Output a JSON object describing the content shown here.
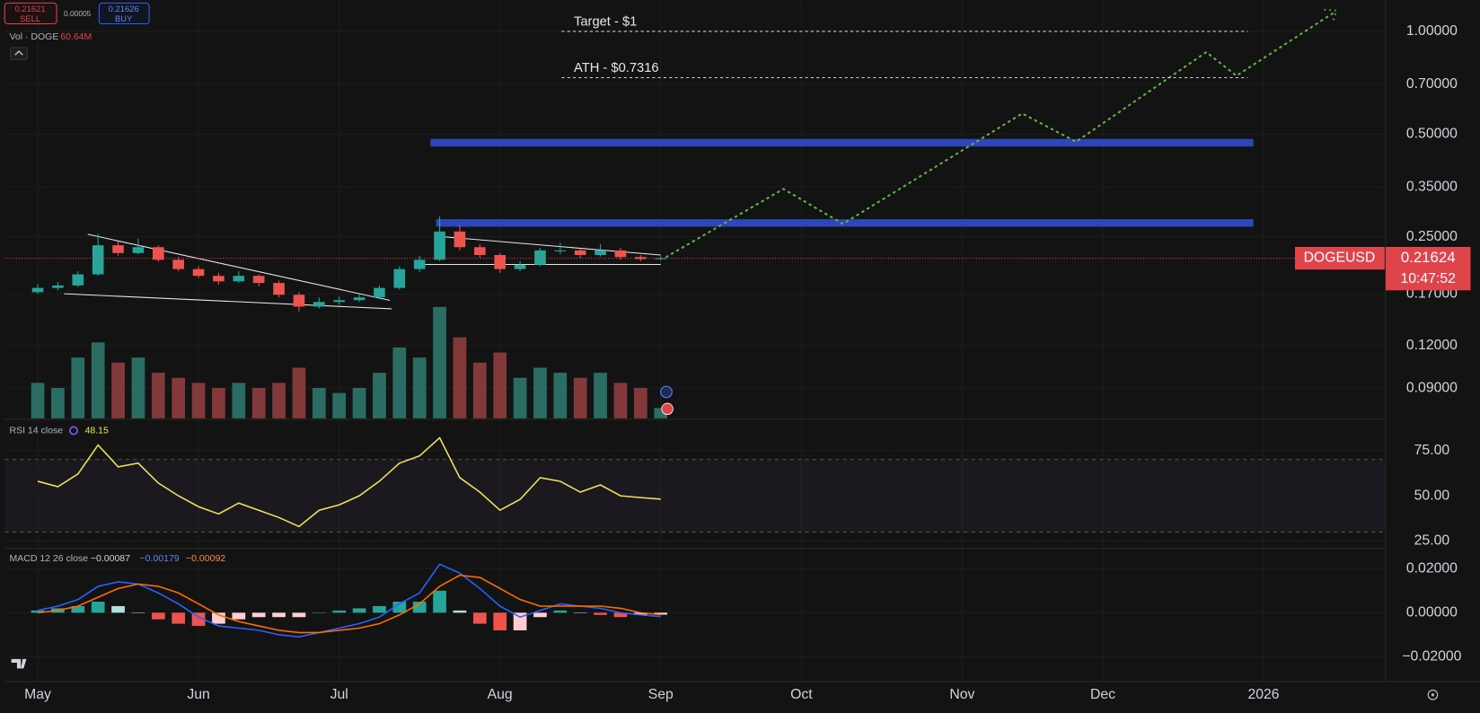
{
  "toolbar": {
    "sell_price": "0.21621",
    "sell_label": "SELL",
    "spread": "0.00005",
    "buy_price": "0.21626",
    "buy_label": "BUY",
    "volume_legend": "Vol · DOGE",
    "volume_value": "60.64M"
  },
  "price_tag": {
    "symbol": "DOGEUSD",
    "countdown": "10:47:52"
  },
  "chart_data": [
    {
      "type": "candlestick",
      "log_scale": true,
      "up_color": "#26a69a",
      "down_color": "#ef5350",
      "volume_up_color": "#2b6d63",
      "volume_down_color": "#83393a",
      "grid": true,
      "categories": [
        "May",
        null,
        null,
        null,
        null,
        null,
        null,
        null,
        "Jun",
        null,
        null,
        null,
        null,
        null,
        null,
        "Jul",
        null,
        null,
        null,
        null,
        null,
        null,
        null,
        "Aug",
        null,
        null,
        null,
        null,
        null,
        null,
        null,
        "Sep",
        null,
        null,
        null,
        null,
        null,
        null,
        "Oct",
        null,
        null,
        null,
        null,
        null,
        null,
        null,
        "Nov",
        null,
        null,
        null,
        null,
        null,
        null,
        "Dec",
        null,
        null,
        null,
        null,
        null,
        null,
        null,
        "2026",
        null,
        null,
        null,
        null,
        null,
        null
      ],
      "open": [
        0.172,
        0.177,
        0.18,
        0.194,
        0.236,
        0.224,
        0.233,
        0.214,
        0.201,
        0.192,
        0.185,
        0.192,
        0.183,
        0.169,
        0.156,
        0.161,
        0.163,
        0.166,
        0.177,
        0.201,
        0.214,
        0.259,
        0.233,
        0.221,
        0.201,
        0.207,
        0.228,
        0.228,
        0.221,
        0.228,
        0.218,
        0.215,
        null,
        null,
        null,
        null,
        null,
        null,
        null,
        null,
        null,
        null,
        null,
        null,
        null,
        null,
        null,
        null,
        null,
        null,
        null,
        null,
        null,
        null,
        null,
        null,
        null,
        null,
        null,
        null,
        null,
        null,
        null,
        null,
        null,
        null,
        null,
        null
      ],
      "high": [
        0.182,
        0.184,
        0.198,
        0.255,
        0.242,
        0.247,
        0.236,
        0.218,
        0.205,
        0.196,
        0.198,
        0.194,
        0.186,
        0.172,
        0.166,
        0.167,
        0.17,
        0.18,
        0.205,
        0.22,
        0.287,
        0.27,
        0.238,
        0.224,
        0.212,
        0.232,
        0.24,
        0.231,
        0.238,
        0.232,
        0.221,
        0.219,
        null,
        null,
        null,
        null,
        null,
        null,
        null,
        null,
        null,
        null,
        null,
        null,
        null,
        null,
        null,
        null,
        null,
        null,
        null,
        null,
        null,
        null,
        null,
        null,
        null,
        null,
        null,
        null,
        null,
        null,
        null,
        null,
        null,
        null,
        null,
        null
      ],
      "low": [
        0.17,
        0.174,
        0.178,
        0.192,
        0.22,
        0.222,
        0.211,
        0.198,
        0.189,
        0.181,
        0.183,
        0.179,
        0.166,
        0.151,
        0.154,
        0.158,
        0.161,
        0.164,
        0.175,
        0.197,
        0.212,
        0.228,
        0.217,
        0.196,
        0.198,
        0.205,
        0.222,
        0.216,
        0.219,
        0.214,
        0.212,
        0.213,
        null,
        null,
        null,
        null,
        null,
        null,
        null,
        null,
        null,
        null,
        null,
        null,
        null,
        null,
        null,
        null,
        null,
        null,
        null,
        null,
        null,
        null,
        null,
        null,
        null,
        null,
        null,
        null,
        null,
        null,
        null,
        null,
        null,
        null,
        null,
        null
      ],
      "close": [
        0.177,
        0.18,
        0.194,
        0.236,
        0.224,
        0.233,
        0.214,
        0.201,
        0.192,
        0.185,
        0.192,
        0.183,
        0.169,
        0.156,
        0.161,
        0.163,
        0.166,
        0.177,
        0.201,
        0.214,
        0.259,
        0.233,
        0.221,
        0.201,
        0.207,
        0.228,
        0.228,
        0.221,
        0.228,
        0.218,
        0.215,
        0.21624,
        null,
        null,
        null,
        null,
        null,
        null,
        null,
        null,
        null,
        null,
        null,
        null,
        null,
        null,
        null,
        null,
        null,
        null,
        null,
        null,
        null,
        null,
        null,
        null,
        null,
        null,
        null,
        null,
        null,
        null,
        null,
        null,
        null,
        null,
        null,
        null
      ],
      "volume": [
        210000000,
        180000000,
        360000000,
        450000000,
        330000000,
        360000000,
        270000000,
        240000000,
        210000000,
        180000000,
        210000000,
        180000000,
        210000000,
        300000000,
        180000000,
        150000000,
        180000000,
        270000000,
        420000000,
        360000000,
        660000000,
        480000000,
        330000000,
        390000000,
        240000000,
        300000000,
        270000000,
        240000000,
        270000000,
        210000000,
        180000000,
        60640000,
        null,
        null,
        null,
        null,
        null,
        null,
        null,
        null,
        null,
        null,
        null,
        null,
        null,
        null,
        null,
        null,
        null,
        null,
        null,
        null,
        null,
        null,
        null,
        null,
        null,
        null,
        null,
        null,
        null,
        null,
        null,
        null,
        null,
        null,
        null,
        null
      ],
      "ylim": [
        0.0734,
        1.234
      ],
      "yticks": [
        {
          "value": 1,
          "label": "1.00000"
        },
        {
          "value": 0.7,
          "label": "0.70000"
        },
        {
          "value": 0.5,
          "label": "0.50000"
        },
        {
          "value": 0.35,
          "label": "0.35000"
        },
        {
          "value": 0.25,
          "label": "0.25000"
        },
        {
          "value": 0.17,
          "label": "0.17000"
        },
        {
          "value": 0.12,
          "label": "0.12000"
        },
        {
          "value": 0.09,
          "label": "0.09000"
        }
      ],
      "annotations": [
        {
          "value": 1,
          "label": "Target - $1"
        },
        {
          "value": 0.7316,
          "label": "ATH - $0.7316"
        }
      ]
    },
    {
      "type": "line",
      "grid": true,
      "band": [
        30,
        70
      ],
      "series": [
        {
          "name": "RSI 14 close",
          "color": "#f0e05a",
          "values": [
            58,
            55,
            62,
            78,
            66,
            68,
            57,
            50,
            44,
            40,
            46,
            42,
            38,
            33,
            42,
            45,
            50,
            58,
            68,
            72,
            82,
            60,
            52,
            42,
            48,
            60,
            58,
            52,
            56,
            50,
            49,
            48.15,
            null,
            null,
            null,
            null,
            null,
            null,
            null,
            null,
            null,
            null,
            null,
            null,
            null,
            null,
            null,
            null,
            null,
            null,
            null,
            null,
            null,
            null,
            null,
            null,
            null,
            null,
            null,
            null,
            null,
            null,
            null,
            null,
            null,
            null,
            null,
            null
          ]
        }
      ],
      "ylim": [
        21.4,
        91.7
      ],
      "yticks": [
        {
          "value": 75,
          "label": "75.00"
        },
        {
          "value": 50,
          "label": "50.00"
        },
        {
          "value": 25,
          "label": "25.00"
        }
      ]
    },
    {
      "type": "macd",
      "grid": true,
      "title": "MACD 12 26 close",
      "legend_values": [
        "−0.00087",
        "−0.00179",
        "−0.00092"
      ],
      "series": [
        {
          "color": "#26a69a",
          "values": [
            0.001,
            0.002,
            0.003,
            0.005,
            0.003,
            0,
            -0.003,
            -0.005,
            -0.006,
            -0.005,
            -0.003,
            -0.002,
            -0.002,
            -0.002,
            0,
            0.001,
            0.002,
            0.003,
            0.005,
            0.005,
            0.01,
            0.001,
            -0.005,
            -0.008,
            -0.008,
            -0.002,
            0.001,
            0,
            -0.001,
            -0.002,
            -0.001,
            -0.00087,
            null,
            null,
            null,
            null,
            null,
            null,
            null,
            null,
            null,
            null,
            null,
            null,
            null,
            null,
            null,
            null,
            null,
            null,
            null,
            null,
            null,
            null,
            null,
            null,
            null,
            null,
            null,
            null,
            null,
            null,
            null,
            null,
            null,
            null,
            null,
            null
          ]
        },
        {
          "color": "#2962ff",
          "values": [
            0.001,
            0.003,
            0.006,
            0.012,
            0.014,
            0.013,
            0.009,
            0.004,
            -0.002,
            -0.006,
            -0.007,
            -0.008,
            -0.01,
            -0.011,
            -0.009,
            -0.007,
            -0.005,
            -0.002,
            0.004,
            0.009,
            0.022,
            0.018,
            0.011,
            0.003,
            -0.002,
            0.001,
            0.004,
            0.003,
            0.002,
            0,
            -0.001,
            -0.00179,
            null,
            null,
            null,
            null,
            null,
            null,
            null,
            null,
            null,
            null,
            null,
            null,
            null,
            null,
            null,
            null,
            null,
            null,
            null,
            null,
            null,
            null,
            null,
            null,
            null,
            null,
            null,
            null,
            null,
            null,
            null,
            null,
            null,
            null,
            null,
            null
          ]
        },
        {
          "color": "#ff6d00",
          "values": [
            0,
            0.001,
            0.003,
            0.007,
            0.011,
            0.013,
            0.012,
            0.009,
            0.004,
            -0.001,
            -0.004,
            -0.006,
            -0.008,
            -0.009,
            -0.009,
            -0.008,
            -0.007,
            -0.005,
            -0.001,
            0.004,
            0.012,
            0.017,
            0.016,
            0.011,
            0.006,
            0.003,
            0.003,
            0.003,
            0.003,
            0.002,
            0,
            -0.00092,
            null,
            null,
            null,
            null,
            null,
            null,
            null,
            null,
            null,
            null,
            null,
            null,
            null,
            null,
            null,
            null,
            null,
            null,
            null,
            null,
            null,
            null,
            null,
            null,
            null,
            null,
            null,
            null,
            null,
            null,
            null,
            null,
            null,
            null,
            null,
            null
          ]
        }
      ],
      "ylim": [
        -0.0313,
        0.0287
      ],
      "yticks": [
        {
          "value": 0.02,
          "label": "0.02000"
        },
        {
          "value": 0,
          "label": "0.00000"
        },
        {
          "value": -0.02,
          "label": "−0.02000"
        }
      ]
    }
  ]
}
